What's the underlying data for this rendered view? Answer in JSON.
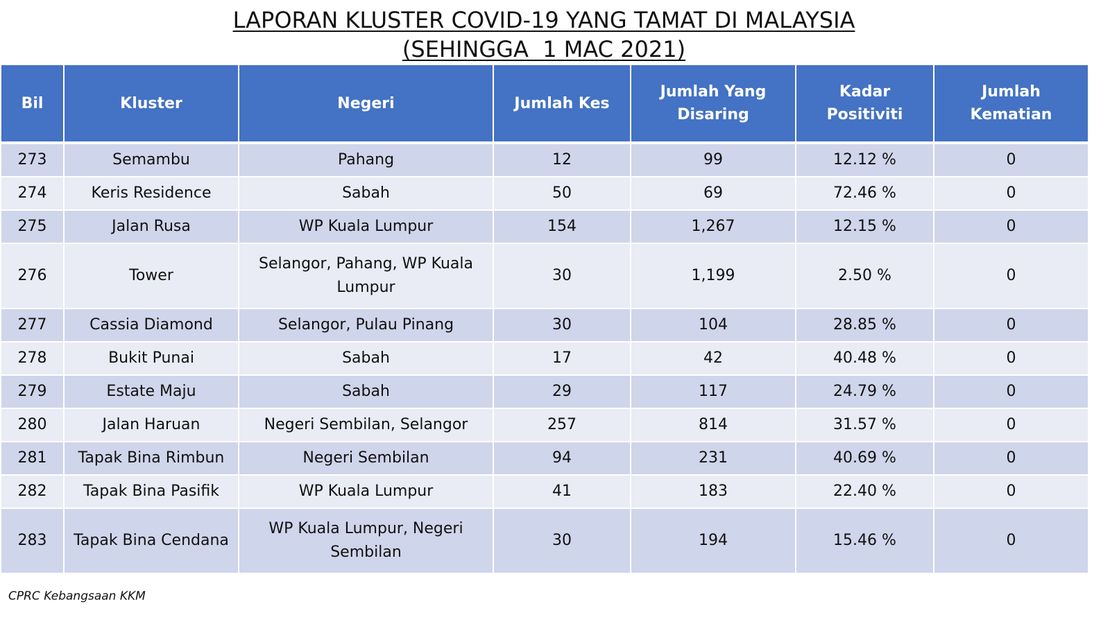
{
  "title": {
    "line1": "LAPORAN KLUSTER COVID-19 YANG TAMAT DI MALAYSIA",
    "line2": "(SEHINGGA  1 MAC 2021)"
  },
  "table": {
    "headers": {
      "bil": "Bil",
      "kluster": "Kluster",
      "negeri": "Negeri",
      "jumlah_kes": "Jumlah Kes",
      "jumlah_disaring": "Jumlah Yang Disaring",
      "kadar_positiviti": "Kadar Positiviti",
      "jumlah_kematian": "Jumlah Kematian"
    },
    "rows": [
      {
        "bil": "273",
        "kluster": "Semambu",
        "negeri": "Pahang",
        "kes": "12",
        "disaring": "99",
        "kadar": "12.12 %",
        "kematian": "0"
      },
      {
        "bil": "274",
        "kluster": "Keris Residence",
        "negeri": "Sabah",
        "kes": "50",
        "disaring": "69",
        "kadar": "72.46 %",
        "kematian": "0"
      },
      {
        "bil": "275",
        "kluster": "Jalan Rusa",
        "negeri": "WP Kuala Lumpur",
        "kes": "154",
        "disaring": "1,267",
        "kadar": "12.15 %",
        "kematian": "0"
      },
      {
        "bil": "276",
        "kluster": "Tower",
        "negeri": "Selangor, Pahang, WP Kuala Lumpur",
        "kes": "30",
        "disaring": "1,199",
        "kadar": "2.50 %",
        "kematian": "0"
      },
      {
        "bil": "277",
        "kluster": "Cassia Diamond",
        "negeri": "Selangor, Pulau Pinang",
        "kes": "30",
        "disaring": "104",
        "kadar": "28.85 %",
        "kematian": "0"
      },
      {
        "bil": "278",
        "kluster": "Bukit Punai",
        "negeri": "Sabah",
        "kes": "17",
        "disaring": "42",
        "kadar": "40.48 %",
        "kematian": "0"
      },
      {
        "bil": "279",
        "kluster": "Estate Maju",
        "negeri": "Sabah",
        "kes": "29",
        "disaring": "117",
        "kadar": "24.79 %",
        "kematian": "0"
      },
      {
        "bil": "280",
        "kluster": "Jalan Haruan",
        "negeri": "Negeri Sembilan, Selangor",
        "kes": "257",
        "disaring": "814",
        "kadar": "31.57 %",
        "kematian": "0"
      },
      {
        "bil": "281",
        "kluster": "Tapak Bina Rimbun",
        "negeri": "Negeri Sembilan",
        "kes": "94",
        "disaring": "231",
        "kadar": "40.69 %",
        "kematian": "0"
      },
      {
        "bil": "282",
        "kluster": "Tapak Bina Pasifik",
        "negeri": "WP Kuala Lumpur",
        "kes": "41",
        "disaring": "183",
        "kadar": "22.40 %",
        "kematian": "0"
      },
      {
        "bil": "283",
        "kluster": "Tapak Bina Cendana",
        "negeri": "WP Kuala Lumpur, Negeri Sembilan",
        "kes": "30",
        "disaring": "194",
        "kadar": "15.46 %",
        "kematian": "0"
      }
    ]
  },
  "footer": {
    "source": "CPRC Kebangsaan KKM"
  },
  "colors": {
    "header_bg": "#4472c4",
    "row_dark": "#cfd5ea",
    "row_light": "#e9ebf5"
  }
}
